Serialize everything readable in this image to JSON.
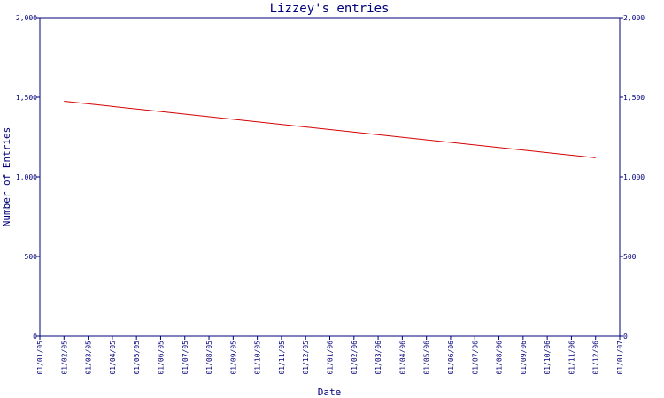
{
  "chart_data": {
    "type": "line",
    "title": "Lizzey's entries",
    "xlabel": "Date",
    "ylabel": "Number of Entries",
    "ylim": [
      0,
      2000
    ],
    "y_ticks": [
      0,
      500,
      1000,
      1500,
      2000
    ],
    "y_tick_labels": [
      "0",
      "500",
      "1,000",
      "1,500",
      "2,000"
    ],
    "x_tick_labels": [
      "01/01/05",
      "01/02/05",
      "01/03/05",
      "01/04/05",
      "01/05/05",
      "01/06/05",
      "01/07/05",
      "01/08/05",
      "01/09/05",
      "01/10/05",
      "01/11/05",
      "01/12/05",
      "01/01/06",
      "01/02/06",
      "01/03/06",
      "01/04/06",
      "01/05/06",
      "01/06/06",
      "01/07/06",
      "01/08/06",
      "01/09/06",
      "01/10/06",
      "01/11/06",
      "01/12/06",
      "01/01/07"
    ],
    "grid": false,
    "series": [
      {
        "color": "#d40000",
        "x": [
          "01/02/05",
          "01/12/06"
        ],
        "values": [
          1475,
          1120
        ]
      }
    ]
  }
}
